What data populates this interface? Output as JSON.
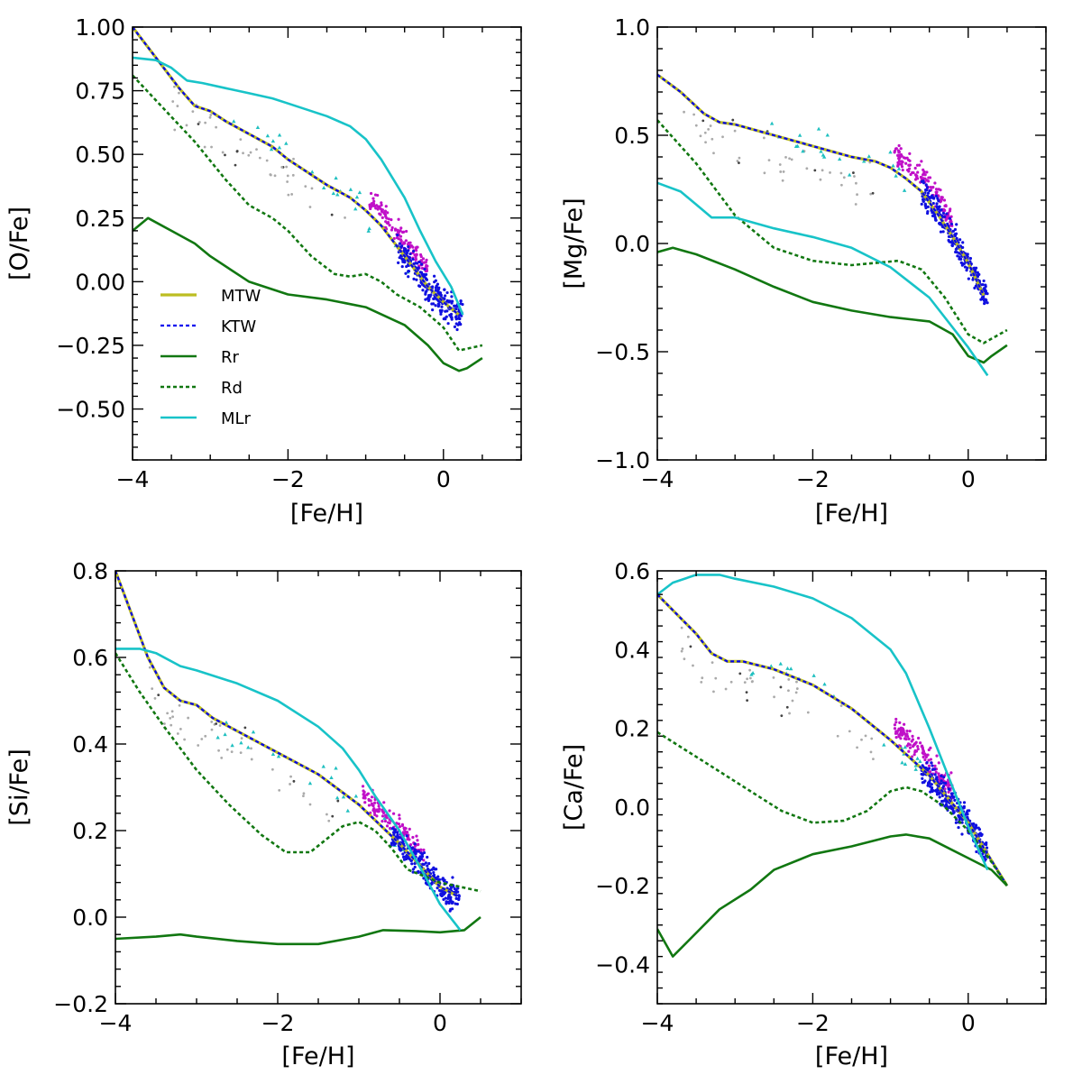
{
  "chart_data": [
    {
      "id": "o",
      "type": "line",
      "xlabel": "[Fe/H]",
      "ylabel": "[O/Fe]",
      "xlim": [
        -4,
        1
      ],
      "ylim": [
        -0.7,
        1.0
      ],
      "xticks": [
        -4,
        -2,
        0
      ],
      "xtick_labels": [
        "−4",
        "−2",
        "0"
      ],
      "yticks": [
        -0.5,
        -0.25,
        0.0,
        0.25,
        0.5,
        0.75,
        1.0
      ],
      "ytick_labels": [
        "−0.50",
        "−0.25",
        "0.00",
        "0.25",
        "0.50",
        "0.75",
        "1.00"
      ],
      "legend": [
        "MTW",
        "KTW",
        "Rr",
        "Rd",
        "MLr"
      ],
      "series": [
        {
          "name": "MTW",
          "x": [
            -4.0,
            -3.7,
            -3.4,
            -3.2,
            -3.0,
            -2.8,
            -2.5,
            -2.2,
            -2.0,
            -1.8,
            -1.5,
            -1.2,
            -1.0,
            -0.8,
            -0.6,
            -0.4,
            -0.2,
            0.0,
            0.2
          ],
          "y": [
            1.0,
            0.88,
            0.76,
            0.69,
            0.67,
            0.63,
            0.58,
            0.53,
            0.48,
            0.44,
            0.38,
            0.33,
            0.28,
            0.22,
            0.14,
            0.06,
            -0.02,
            -0.08,
            -0.13
          ]
        },
        {
          "name": "KTW",
          "x": [
            -4.0,
            -3.7,
            -3.4,
            -3.2,
            -3.0,
            -2.8,
            -2.5,
            -2.2,
            -2.0,
            -1.8,
            -1.5,
            -1.2,
            -1.0,
            -0.8,
            -0.6,
            -0.4,
            -0.2,
            0.0,
            0.2
          ],
          "y": [
            1.0,
            0.88,
            0.76,
            0.69,
            0.67,
            0.63,
            0.58,
            0.53,
            0.48,
            0.44,
            0.38,
            0.33,
            0.28,
            0.22,
            0.14,
            0.06,
            -0.02,
            -0.08,
            -0.13
          ]
        },
        {
          "name": "Rr",
          "x": [
            -4.0,
            -3.8,
            -3.5,
            -3.2,
            -3.0,
            -2.5,
            -2.0,
            -1.5,
            -1.0,
            -0.5,
            -0.2,
            0.0,
            0.2,
            0.3,
            0.5
          ],
          "y": [
            0.2,
            0.25,
            0.2,
            0.15,
            0.1,
            0.0,
            -0.05,
            -0.07,
            -0.1,
            -0.17,
            -0.25,
            -0.32,
            -0.35,
            -0.34,
            -0.3
          ]
        },
        {
          "name": "Rd",
          "x": [
            -4.0,
            -3.6,
            -3.2,
            -2.8,
            -2.5,
            -2.2,
            -2.0,
            -1.7,
            -1.4,
            -1.2,
            -1.0,
            -0.8,
            -0.6,
            -0.3,
            0.0,
            0.2,
            0.5
          ],
          "y": [
            0.81,
            0.68,
            0.55,
            0.4,
            0.3,
            0.25,
            0.2,
            0.1,
            0.03,
            0.02,
            0.03,
            0.0,
            -0.05,
            -0.1,
            -0.18,
            -0.27,
            -0.25
          ]
        },
        {
          "name": "MLr",
          "x": [
            -4.0,
            -3.7,
            -3.5,
            -3.3,
            -3.1,
            -2.8,
            -2.5,
            -2.2,
            -2.0,
            -1.7,
            -1.5,
            -1.2,
            -1.0,
            -0.8,
            -0.5,
            -0.3,
            -0.1,
            0.1,
            0.25
          ],
          "y": [
            0.88,
            0.87,
            0.84,
            0.79,
            0.78,
            0.76,
            0.74,
            0.72,
            0.7,
            0.67,
            0.65,
            0.61,
            0.56,
            0.48,
            0.33,
            0.2,
            0.08,
            -0.02,
            -0.13
          ]
        }
      ]
    },
    {
      "id": "mg",
      "type": "line",
      "xlabel": "[Fe/H]",
      "ylabel": "[Mg/Fe]",
      "xlim": [
        -4,
        1
      ],
      "ylim": [
        -1.0,
        1.0
      ],
      "xticks": [
        -4,
        -2,
        0
      ],
      "xtick_labels": [
        "−4",
        "−2",
        "0"
      ],
      "yticks": [
        -1.0,
        -0.5,
        0.0,
        0.5,
        1.0
      ],
      "ytick_labels": [
        "−1.0",
        "−0.5",
        "0.0",
        "0.5",
        "1.0"
      ],
      "series": [
        {
          "name": "MTW",
          "x": [
            -4.0,
            -3.7,
            -3.4,
            -3.2,
            -3.0,
            -2.8,
            -2.5,
            -2.2,
            -2.0,
            -1.8,
            -1.5,
            -1.2,
            -1.0,
            -0.8,
            -0.6,
            -0.4,
            -0.2,
            0.0,
            0.2
          ],
          "y": [
            0.78,
            0.7,
            0.6,
            0.56,
            0.55,
            0.53,
            0.5,
            0.47,
            0.45,
            0.43,
            0.4,
            0.38,
            0.35,
            0.3,
            0.24,
            0.14,
            0.03,
            -0.09,
            -0.24
          ]
        },
        {
          "name": "KTW",
          "x": [
            -4.0,
            -3.7,
            -3.4,
            -3.2,
            -3.0,
            -2.8,
            -2.5,
            -2.2,
            -2.0,
            -1.8,
            -1.5,
            -1.2,
            -1.0,
            -0.8,
            -0.6,
            -0.4,
            -0.2,
            0.0,
            0.2
          ],
          "y": [
            0.78,
            0.7,
            0.6,
            0.56,
            0.55,
            0.53,
            0.5,
            0.47,
            0.45,
            0.43,
            0.4,
            0.38,
            0.35,
            0.3,
            0.24,
            0.14,
            0.03,
            -0.09,
            -0.24
          ]
        },
        {
          "name": "Rr",
          "x": [
            -4.0,
            -3.8,
            -3.5,
            -3.0,
            -2.5,
            -2.0,
            -1.5,
            -1.0,
            -0.5,
            -0.2,
            0.0,
            0.2,
            0.3,
            0.5
          ],
          "y": [
            -0.04,
            -0.02,
            -0.05,
            -0.12,
            -0.2,
            -0.27,
            -0.31,
            -0.34,
            -0.36,
            -0.42,
            -0.52,
            -0.55,
            -0.52,
            -0.47
          ]
        },
        {
          "name": "Rd",
          "x": [
            -4.0,
            -3.5,
            -3.0,
            -2.5,
            -2.0,
            -1.5,
            -1.2,
            -0.9,
            -0.6,
            -0.3,
            0.0,
            0.2,
            0.5
          ],
          "y": [
            0.57,
            0.37,
            0.13,
            -0.02,
            -0.08,
            -0.1,
            -0.09,
            -0.08,
            -0.12,
            -0.25,
            -0.42,
            -0.46,
            -0.4
          ]
        },
        {
          "name": "MLr",
          "x": [
            -4.0,
            -3.7,
            -3.5,
            -3.3,
            -3.0,
            -2.8,
            -2.5,
            -2.0,
            -1.5,
            -1.0,
            -0.5,
            0.0,
            0.25
          ],
          "y": [
            0.28,
            0.24,
            0.18,
            0.12,
            0.12,
            0.1,
            0.07,
            0.03,
            -0.02,
            -0.11,
            -0.25,
            -0.48,
            -0.61
          ]
        }
      ]
    },
    {
      "id": "si",
      "type": "line",
      "xlabel": "[Fe/H]",
      "ylabel": "[Si/Fe]",
      "xlim": [
        -4,
        1
      ],
      "ylim": [
        -0.2,
        0.8
      ],
      "xticks": [
        -4,
        -2,
        0
      ],
      "xtick_labels": [
        "−4",
        "−2",
        "0"
      ],
      "yticks": [
        -0.2,
        0.0,
        0.2,
        0.4,
        0.6,
        0.8
      ],
      "ytick_labels": [
        "−0.2",
        "0.0",
        "0.2",
        "0.4",
        "0.6",
        "0.8"
      ],
      "series": [
        {
          "name": "MTW",
          "x": [
            -4.0,
            -3.8,
            -3.6,
            -3.4,
            -3.2,
            -3.0,
            -2.8,
            -2.5,
            -2.0,
            -1.5,
            -1.0,
            -0.5,
            0.0,
            0.2
          ],
          "y": [
            0.8,
            0.7,
            0.6,
            0.53,
            0.5,
            0.49,
            0.46,
            0.43,
            0.38,
            0.33,
            0.26,
            0.17,
            0.07,
            0.05
          ]
        },
        {
          "name": "KTW",
          "x": [
            -4.0,
            -3.8,
            -3.6,
            -3.4,
            -3.2,
            -3.0,
            -2.8,
            -2.5,
            -2.0,
            -1.5,
            -1.0,
            -0.5,
            0.0,
            0.2
          ],
          "y": [
            0.8,
            0.7,
            0.6,
            0.53,
            0.5,
            0.49,
            0.46,
            0.43,
            0.38,
            0.33,
            0.26,
            0.17,
            0.07,
            0.05
          ]
        },
        {
          "name": "Rr",
          "x": [
            -4.0,
            -3.5,
            -3.2,
            -3.0,
            -2.5,
            -2.0,
            -1.5,
            -1.0,
            -0.7,
            -0.3,
            0.0,
            0.3,
            0.5
          ],
          "y": [
            -0.05,
            -0.045,
            -0.04,
            -0.045,
            -0.055,
            -0.062,
            -0.062,
            -0.045,
            -0.03,
            -0.032,
            -0.035,
            -0.03,
            0.0
          ]
        },
        {
          "name": "Rd",
          "x": [
            -4.0,
            -3.7,
            -3.4,
            -3.0,
            -2.6,
            -2.2,
            -1.9,
            -1.6,
            -1.4,
            -1.2,
            -1.0,
            -0.8,
            -0.6,
            -0.4,
            0.0,
            0.5
          ],
          "y": [
            0.61,
            0.52,
            0.44,
            0.34,
            0.26,
            0.19,
            0.15,
            0.15,
            0.18,
            0.21,
            0.22,
            0.2,
            0.16,
            0.11,
            0.08,
            0.06
          ]
        },
        {
          "name": "MLr",
          "x": [
            -4.0,
            -3.7,
            -3.5,
            -3.2,
            -3.0,
            -2.5,
            -2.0,
            -1.5,
            -1.2,
            -1.0,
            -0.8,
            -0.5,
            -0.2,
            0.0,
            0.25
          ],
          "y": [
            0.62,
            0.62,
            0.61,
            0.58,
            0.57,
            0.54,
            0.5,
            0.44,
            0.39,
            0.34,
            0.28,
            0.2,
            0.1,
            0.03,
            -0.03
          ]
        }
      ]
    },
    {
      "id": "ca",
      "type": "line",
      "xlabel": "[Fe/H]",
      "ylabel": "[Ca/Fe]",
      "xlim": [
        -4,
        1
      ],
      "ylim": [
        -0.5,
        0.6
      ],
      "xticks": [
        -4,
        -2,
        0
      ],
      "xtick_labels": [
        "−4",
        "−2",
        "0"
      ],
      "yticks": [
        -0.4,
        -0.2,
        0.0,
        0.2,
        0.4,
        0.6
      ],
      "ytick_labels": [
        "−0.4",
        "−0.2",
        "0.0",
        "0.2",
        "0.4",
        "0.6"
      ],
      "series": [
        {
          "name": "MTW",
          "x": [
            -4.0,
            -3.8,
            -3.5,
            -3.3,
            -3.1,
            -2.9,
            -2.5,
            -2.0,
            -1.5,
            -1.0,
            -0.5,
            0.0,
            0.25,
            0.5
          ],
          "y": [
            0.54,
            0.5,
            0.44,
            0.39,
            0.37,
            0.37,
            0.35,
            0.31,
            0.25,
            0.17,
            0.08,
            -0.04,
            -0.12,
            -0.2
          ]
        },
        {
          "name": "KTW",
          "x": [
            -4.0,
            -3.8,
            -3.5,
            -3.3,
            -3.1,
            -2.9,
            -2.5,
            -2.0,
            -1.5,
            -1.0,
            -0.5,
            0.0,
            0.25,
            0.5
          ],
          "y": [
            0.54,
            0.5,
            0.44,
            0.39,
            0.37,
            0.37,
            0.35,
            0.31,
            0.25,
            0.17,
            0.08,
            -0.04,
            -0.12,
            -0.2
          ]
        },
        {
          "name": "Rr",
          "x": [
            -4.0,
            -3.8,
            -3.5,
            -3.2,
            -2.8,
            -2.5,
            -2.0,
            -1.5,
            -1.0,
            -0.8,
            -0.5,
            -0.2,
            0.0,
            0.3,
            0.5
          ],
          "y": [
            -0.31,
            -0.38,
            -0.32,
            -0.26,
            -0.21,
            -0.16,
            -0.12,
            -0.1,
            -0.075,
            -0.07,
            -0.08,
            -0.11,
            -0.13,
            -0.16,
            -0.2
          ]
        },
        {
          "name": "Rd",
          "x": [
            -4.0,
            -3.6,
            -3.2,
            -2.8,
            -2.4,
            -2.0,
            -1.6,
            -1.3,
            -1.0,
            -0.8,
            -0.6,
            -0.3,
            0.0,
            0.3,
            0.5
          ],
          "y": [
            0.19,
            0.14,
            0.09,
            0.04,
            -0.01,
            -0.04,
            -0.035,
            -0.01,
            0.04,
            0.05,
            0.04,
            0.0,
            -0.06,
            -0.14,
            -0.2
          ]
        },
        {
          "name": "MLr",
          "x": [
            -4.0,
            -3.8,
            -3.5,
            -3.2,
            -3.0,
            -2.5,
            -2.0,
            -1.5,
            -1.0,
            -0.8,
            -0.5,
            -0.2,
            0.0,
            0.25
          ],
          "y": [
            0.54,
            0.57,
            0.59,
            0.59,
            0.58,
            0.56,
            0.53,
            0.48,
            0.4,
            0.34,
            0.2,
            0.05,
            -0.05,
            -0.16
          ]
        }
      ]
    }
  ],
  "colors": {
    "MTW": "#bcbd22",
    "KTW": "#0000ee",
    "Rr": "#117711",
    "Rd": "#117711",
    "MLr": "#18c3c8",
    "obs_blue": "#1010e0",
    "obs_magenta": "#c010c8",
    "obs_cyan": "#20c0c0",
    "obs_gray": "#aaaaaa",
    "obs_black": "#444444"
  }
}
